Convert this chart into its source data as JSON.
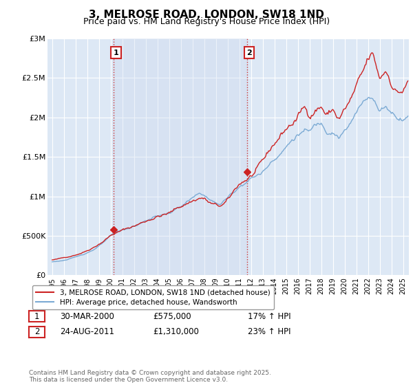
{
  "title": "3, MELROSE ROAD, LONDON, SW18 1ND",
  "subtitle": "Price paid vs. HM Land Registry's House Price Index (HPI)",
  "title_fontsize": 11,
  "subtitle_fontsize": 9,
  "ylabel_ticks": [
    "£0",
    "£500K",
    "£1M",
    "£1.5M",
    "£2M",
    "£2.5M",
    "£3M"
  ],
  "ytick_values": [
    0,
    500000,
    1000000,
    1500000,
    2000000,
    2500000,
    3000000
  ],
  "ylim": [
    0,
    3000000
  ],
  "xlim_start": 1994.6,
  "xlim_end": 2025.5,
  "x_ticks": [
    1995,
    1996,
    1997,
    1998,
    1999,
    2000,
    2001,
    2002,
    2003,
    2004,
    2005,
    2006,
    2007,
    2008,
    2009,
    2010,
    2011,
    2012,
    2013,
    2014,
    2015,
    2016,
    2017,
    2018,
    2019,
    2020,
    2021,
    2022,
    2023,
    2024,
    2025
  ],
  "sale1_x": 2000.25,
  "sale1_y": 575000,
  "sale1_label": "1",
  "sale2_x": 2011.65,
  "sale2_y": 1310000,
  "sale2_label": "2",
  "vline_color": "#cc3333",
  "vline_style": ":",
  "red_line_color": "#cc2222",
  "blue_line_color": "#7baad4",
  "plot_bg_color": "#dde8f5",
  "span_color": "#ccd9ee",
  "legend_line1": "3, MELROSE ROAD, LONDON, SW18 1ND (detached house)",
  "legend_line2": "HPI: Average price, detached house, Wandsworth",
  "table_row1": [
    "1",
    "30-MAR-2000",
    "£575,000",
    "17% ↑ HPI"
  ],
  "table_row2": [
    "2",
    "24-AUG-2011",
    "£1,310,000",
    "23% ↑ HPI"
  ],
  "footer": "Contains HM Land Registry data © Crown copyright and database right 2025.\nThis data is licensed under the Open Government Licence v3.0.",
  "annotation_box_color": "#cc2222"
}
